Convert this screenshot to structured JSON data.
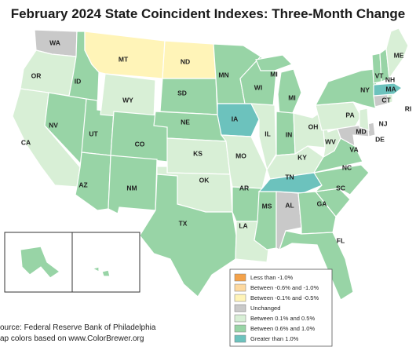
{
  "title": "February 2024 State Coincident Indexes: Three-Month Change",
  "source_lines": [
    "ource: Federal Reserve Bank of Philadelphia",
    "ap colors based on www.ColorBrewer.org"
  ],
  "colors": {
    "orange": "#f4a24a",
    "light_orange": "#fdd9a0",
    "yellow": "#fff4b8",
    "unchanged": "#c9c9c9",
    "light_green": "#d8efd6",
    "medium_green": "#98d4a6",
    "teal": "#6cc2bd"
  },
  "legend": [
    {
      "label": "Less than -1.0%",
      "color": "#f4a24a"
    },
    {
      "label": "Between -0.6% and -1.0%",
      "color": "#fdd9a0"
    },
    {
      "label": "Between -0.1% and -0.5%",
      "color": "#fff4b8"
    },
    {
      "label": "Unchanged",
      "color": "#c9c9c9"
    },
    {
      "label": "Between 0.1% and 0.5%",
      "color": "#d8efd6"
    },
    {
      "label": "Between 0.6% and 1.0%",
      "color": "#98d4a6"
    },
    {
      "label": "Greater than 1.0%",
      "color": "#6cc2bd"
    }
  ],
  "states": {
    "WA": {
      "category": "Unchanged"
    },
    "OR": {
      "category": "Between 0.1% and 0.5%"
    },
    "CA": {
      "category": "Between 0.1% and 0.5%"
    },
    "ID": {
      "category": "Between 0.6% and 1.0%"
    },
    "NV": {
      "category": "Between 0.6% and 1.0%"
    },
    "UT": {
      "category": "Between 0.6% and 1.0%"
    },
    "AZ": {
      "category": "Between 0.6% and 1.0%"
    },
    "MT": {
      "category": "Between -0.1% and -0.5%"
    },
    "WY": {
      "category": "Between 0.1% and 0.5%"
    },
    "CO": {
      "category": "Between 0.6% and 1.0%"
    },
    "NM": {
      "category": "Between 0.6% and 1.0%"
    },
    "ND": {
      "category": "Between -0.1% and -0.5%"
    },
    "SD": {
      "category": "Between 0.6% and 1.0%"
    },
    "NE": {
      "category": "Between 0.6% and 1.0%"
    },
    "KS": {
      "category": "Between 0.1% and 0.5%"
    },
    "OK": {
      "category": "Between 0.1% and 0.5%"
    },
    "TX": {
      "category": "Between 0.6% and 1.0%"
    },
    "MN": {
      "category": "Between 0.6% and 1.0%"
    },
    "IA": {
      "category": "Greater than 1.0%"
    },
    "MO": {
      "category": "Between 0.1% and 0.5%"
    },
    "AR": {
      "category": "Between 0.6% and 1.0%"
    },
    "LA": {
      "category": "Between 0.1% and 0.5%"
    },
    "WI": {
      "category": "Between 0.6% and 1.0%"
    },
    "IL": {
      "category": "Between 0.1% and 0.5%"
    },
    "MS": {
      "category": "Between 0.6% and 1.0%"
    },
    "MI": {
      "category": "Between 0.6% and 1.0%"
    },
    "IN": {
      "category": "Between 0.6% and 1.0%"
    },
    "KY": {
      "category": "Between 0.1% and 0.5%"
    },
    "TN": {
      "category": "Greater than 1.0%"
    },
    "AL": {
      "category": "Unchanged"
    },
    "OH": {
      "category": "Between 0.1% and 0.5%"
    },
    "GA": {
      "category": "Between 0.6% and 1.0%"
    },
    "FL": {
      "category": "Between 0.6% and 1.0%"
    },
    "SC": {
      "category": "Between 0.6% and 1.0%"
    },
    "NC": {
      "category": "Between 0.6% and 1.0%"
    },
    "VA": {
      "category": "Between 0.6% and 1.0%"
    },
    "WV": {
      "category": "Between 0.1% and 0.5%"
    },
    "PA": {
      "category": "Between 0.1% and 0.5%"
    },
    "NY": {
      "category": "Between 0.6% and 1.0%"
    },
    "MD": {
      "category": "Unchanged"
    },
    "DE": {
      "category": "Unchanged"
    },
    "NJ": {
      "category": "Between 0.1% and 0.5%"
    },
    "CT": {
      "category": "Unchanged"
    },
    "RI": {
      "category": "Between 0.1% and 0.5%"
    },
    "MA": {
      "category": "Greater than 1.0%"
    },
    "VT": {
      "category": "Between 0.6% and 1.0%"
    },
    "NH": {
      "category": "Between 0.6% and 1.0%"
    },
    "ME": {
      "category": "Between 0.1% and 0.5%"
    },
    "AK": {
      "category": "Between 0.6% and 1.0%"
    },
    "HI": {
      "category": "Between 0.6% and 1.0%"
    }
  },
  "state_labels": [
    "WA",
    "OR",
    "CA",
    "ID",
    "NV",
    "UT",
    "AZ",
    "MT",
    "WY",
    "CO",
    "NM",
    "ND",
    "SD",
    "NE",
    "KS",
    "OK",
    "TX",
    "MN",
    "IA",
    "MO",
    "AR",
    "LA",
    "WI",
    "IL",
    "MS",
    "MI",
    "MI",
    "IN",
    "KY",
    "TN",
    "AL",
    "OH",
    "GA",
    "FL",
    "SC",
    "NC",
    "VA",
    "WV",
    "PA",
    "NY",
    "MD",
    "DE",
    "NJ",
    "CT",
    "RI",
    "MA",
    "VT",
    "NH",
    "ME",
    "AK",
    "HI"
  ]
}
